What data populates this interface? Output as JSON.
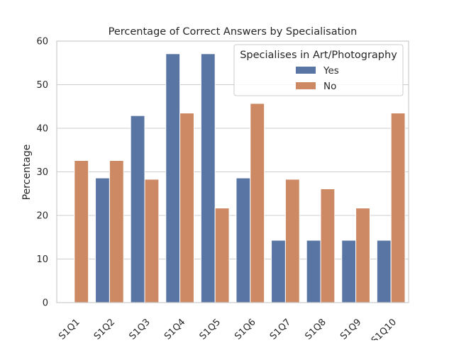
{
  "chart_data": {
    "type": "bar",
    "title": "Percentage of Correct Answers by Specialisation",
    "xlabel": "",
    "ylabel": "Percentage",
    "ylim": [
      0,
      60
    ],
    "yticks": [
      0,
      10,
      20,
      30,
      40,
      50,
      60
    ],
    "categories": [
      "S1Q1",
      "S1Q2",
      "S1Q3",
      "S1Q4",
      "S1Q5",
      "S1Q6",
      "S1Q7",
      "S1Q8",
      "S1Q9",
      "S1Q10"
    ],
    "legend": {
      "title": "Specialises in Art/Photography",
      "placement": "top-right"
    },
    "grid": "horizontal",
    "series": [
      {
        "name": "Yes",
        "color": "#5875a4",
        "values": [
          0,
          28.6,
          42.9,
          57.1,
          57.1,
          28.6,
          14.3,
          14.3,
          14.3,
          14.3
        ]
      },
      {
        "name": "No",
        "color": "#cc8963",
        "values": [
          32.6,
          32.6,
          28.3,
          43.5,
          21.7,
          45.7,
          28.3,
          26.1,
          21.7,
          43.5
        ]
      }
    ]
  }
}
